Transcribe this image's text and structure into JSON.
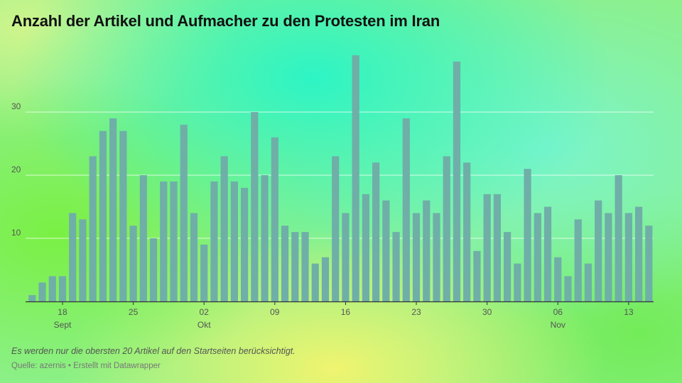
{
  "title": "Anzahl der Artikel und Aufmacher zu den Protesten im Iran",
  "note": "Es werden nur die obersten 20 Artikel auf den Startseiten berücksichtigt.",
  "source": "Quelle: azernis • Erstellt mit Datawrapper",
  "colors": {
    "bar": "#6fafa8",
    "grid": "#ffffff",
    "axis": "#333333"
  },
  "chart_data": {
    "type": "bar",
    "title": "Anzahl der Artikel und Aufmacher zu den Protesten im Iran",
    "xlabel": "",
    "ylabel": "",
    "ylim": [
      0,
      40
    ],
    "grid": true,
    "y_ticks": [
      10,
      20,
      30
    ],
    "x_tick_labels": [
      {
        "day": 3,
        "label": "18",
        "sublabel": "Sept"
      },
      {
        "day": 10,
        "label": "25",
        "sublabel": ""
      },
      {
        "day": 17,
        "label": "02",
        "sublabel": "Okt"
      },
      {
        "day": 24,
        "label": "09",
        "sublabel": ""
      },
      {
        "day": 31,
        "label": "16",
        "sublabel": ""
      },
      {
        "day": 38,
        "label": "23",
        "sublabel": ""
      },
      {
        "day": 45,
        "label": "30",
        "sublabel": ""
      },
      {
        "day": 52,
        "label": "06",
        "sublabel": "Nov"
      },
      {
        "day": 59,
        "label": "13",
        "sublabel": ""
      }
    ],
    "categories": [
      "2022-09-15",
      "2022-09-16",
      "2022-09-17",
      "2022-09-18",
      "2022-09-19",
      "2022-09-20",
      "2022-09-21",
      "2022-09-22",
      "2022-09-23",
      "2022-09-24",
      "2022-09-25",
      "2022-09-26",
      "2022-09-27",
      "2022-09-28",
      "2022-09-29",
      "2022-09-30",
      "2022-10-01",
      "2022-10-02",
      "2022-10-03",
      "2022-10-04",
      "2022-10-05",
      "2022-10-06",
      "2022-10-07",
      "2022-10-08",
      "2022-10-09",
      "2022-10-10",
      "2022-10-11",
      "2022-10-12",
      "2022-10-13",
      "2022-10-14",
      "2022-10-15",
      "2022-10-16",
      "2022-10-17",
      "2022-10-18",
      "2022-10-19",
      "2022-10-20",
      "2022-10-21",
      "2022-10-22",
      "2022-10-23",
      "2022-10-24",
      "2022-10-25",
      "2022-10-26",
      "2022-10-27",
      "2022-10-28",
      "2022-10-29",
      "2022-10-30",
      "2022-10-31",
      "2022-11-01",
      "2022-11-02",
      "2022-11-03",
      "2022-11-04",
      "2022-11-05",
      "2022-11-06",
      "2022-11-07",
      "2022-11-08",
      "2022-11-09",
      "2022-11-10",
      "2022-11-11",
      "2022-11-12",
      "2022-11-13",
      "2022-11-14",
      "2022-11-15"
    ],
    "values": [
      1,
      3,
      4,
      4,
      14,
      13,
      23,
      27,
      29,
      27,
      12,
      20,
      10,
      19,
      19,
      28,
      14,
      9,
      19,
      23,
      19,
      18,
      30,
      20,
      26,
      12,
      11,
      11,
      6,
      7,
      23,
      14,
      39,
      17,
      22,
      16,
      11,
      29,
      14,
      16,
      14,
      23,
      38,
      22,
      8,
      17,
      17,
      11,
      6,
      21,
      14,
      15,
      7,
      4,
      13,
      6,
      16,
      14,
      20,
      14,
      15,
      12
    ]
  }
}
